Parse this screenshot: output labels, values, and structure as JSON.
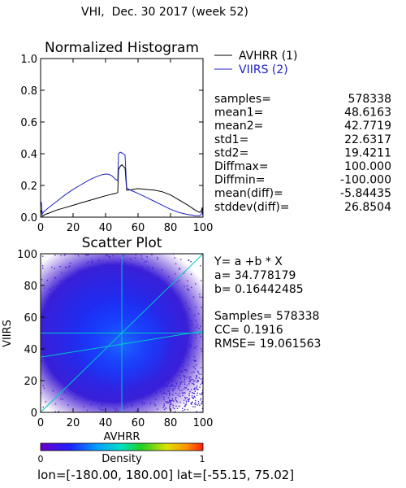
{
  "page_title": "VHI,  Dec. 30 2017 (week 52)",
  "footer": "lon=[-180.00, 180.00] lat=[-55.15, 75.02]",
  "colors": {
    "avhrr": "#000000",
    "viirs": "#2020c0",
    "fit_line": "#00c8c8"
  },
  "chart_data": [
    {
      "type": "line",
      "title": "Normalized Histogram",
      "xlim": [
        0,
        100
      ],
      "ylim": [
        0,
        1.0
      ],
      "xticks": [
        "0",
        "20",
        "40",
        "60",
        "80",
        "100"
      ],
      "yticks": [
        "0.0",
        "0.2",
        "0.4",
        "0.6",
        "0.8",
        "1.0"
      ],
      "legend_position": "top-right",
      "series": [
        {
          "name": "AVHRR (1)",
          "x": [
            0,
            0.5,
            1,
            2,
            3,
            5,
            10,
            15,
            20,
            25,
            30,
            35,
            40,
            44,
            46,
            47.5,
            48,
            49,
            50,
            51,
            52,
            53,
            55,
            60,
            65,
            70,
            75,
            80,
            85,
            90,
            93,
            95,
            97,
            98,
            99,
            99.5,
            100
          ],
          "y": [
            0.03,
            0.04,
            0.005,
            0.012,
            0.018,
            0.025,
            0.045,
            0.06,
            0.075,
            0.09,
            0.105,
            0.12,
            0.135,
            0.145,
            0.15,
            0.155,
            0.3,
            0.32,
            0.33,
            0.32,
            0.31,
            0.17,
            0.172,
            0.18,
            0.175,
            0.17,
            0.16,
            0.14,
            0.11,
            0.08,
            0.06,
            0.045,
            0.035,
            0.03,
            0.04,
            0.06,
            0.01
          ]
        },
        {
          "name": "VIIRS (2)",
          "x": [
            0,
            0.5,
            1,
            2,
            5,
            10,
            15,
            20,
            25,
            30,
            35,
            38,
            40,
            42,
            44,
            46,
            47.5,
            48,
            49,
            50,
            51,
            52,
            53,
            54,
            55,
            60,
            65,
            70,
            75,
            80,
            85,
            90,
            95,
            98,
            99,
            99.5,
            100
          ],
          "y": [
            0.08,
            0.09,
            0.02,
            0.035,
            0.06,
            0.1,
            0.14,
            0.175,
            0.205,
            0.235,
            0.258,
            0.268,
            0.272,
            0.27,
            0.26,
            0.24,
            0.23,
            0.4,
            0.41,
            0.405,
            0.4,
            0.39,
            0.185,
            0.178,
            0.172,
            0.15,
            0.125,
            0.1,
            0.075,
            0.05,
            0.03,
            0.018,
            0.01,
            0.008,
            0.02,
            0.04,
            0.005
          ]
        }
      ],
      "stats": [
        {
          "label": "samples=",
          "value": "578338"
        },
        {
          "label": "mean1=",
          "value": "48.6163"
        },
        {
          "label": "mean2=",
          "value": "42.7719"
        },
        {
          "label": "std1=",
          "value": "22.6317"
        },
        {
          "label": "std2=",
          "value": "19.4211"
        },
        {
          "label": "Diffmax=",
          "value": "100.000"
        },
        {
          "label": "Diffmin=",
          "value": "-100.000"
        },
        {
          "label": "mean(diff)=",
          "value": "-5.84435"
        },
        {
          "label": "stddev(diff)=",
          "value": "26.8504"
        }
      ]
    },
    {
      "type": "scatter",
      "title": "Scatter Plot",
      "xlabel": "AVHRR",
      "ylabel": "VIIRS",
      "xlim": [
        0,
        100
      ],
      "ylim": [
        0,
        100
      ],
      "xticks": [
        "0",
        "20",
        "40",
        "60",
        "80",
        "100"
      ],
      "yticks": [
        "0",
        "20",
        "40",
        "60",
        "80",
        "100"
      ],
      "regression": {
        "a": 34.778179,
        "b": 0.16442485
      },
      "stats_lines": [
        "Y= a +b * X",
        "a= 34.778179",
        "b= 0.16442485",
        "Samples= 578338",
        "CC=  0.1916",
        "RMSE= 19.061563"
      ],
      "density_colorbar": {
        "label": "Density",
        "min_label": "0",
        "max_label": "1"
      }
    }
  ]
}
